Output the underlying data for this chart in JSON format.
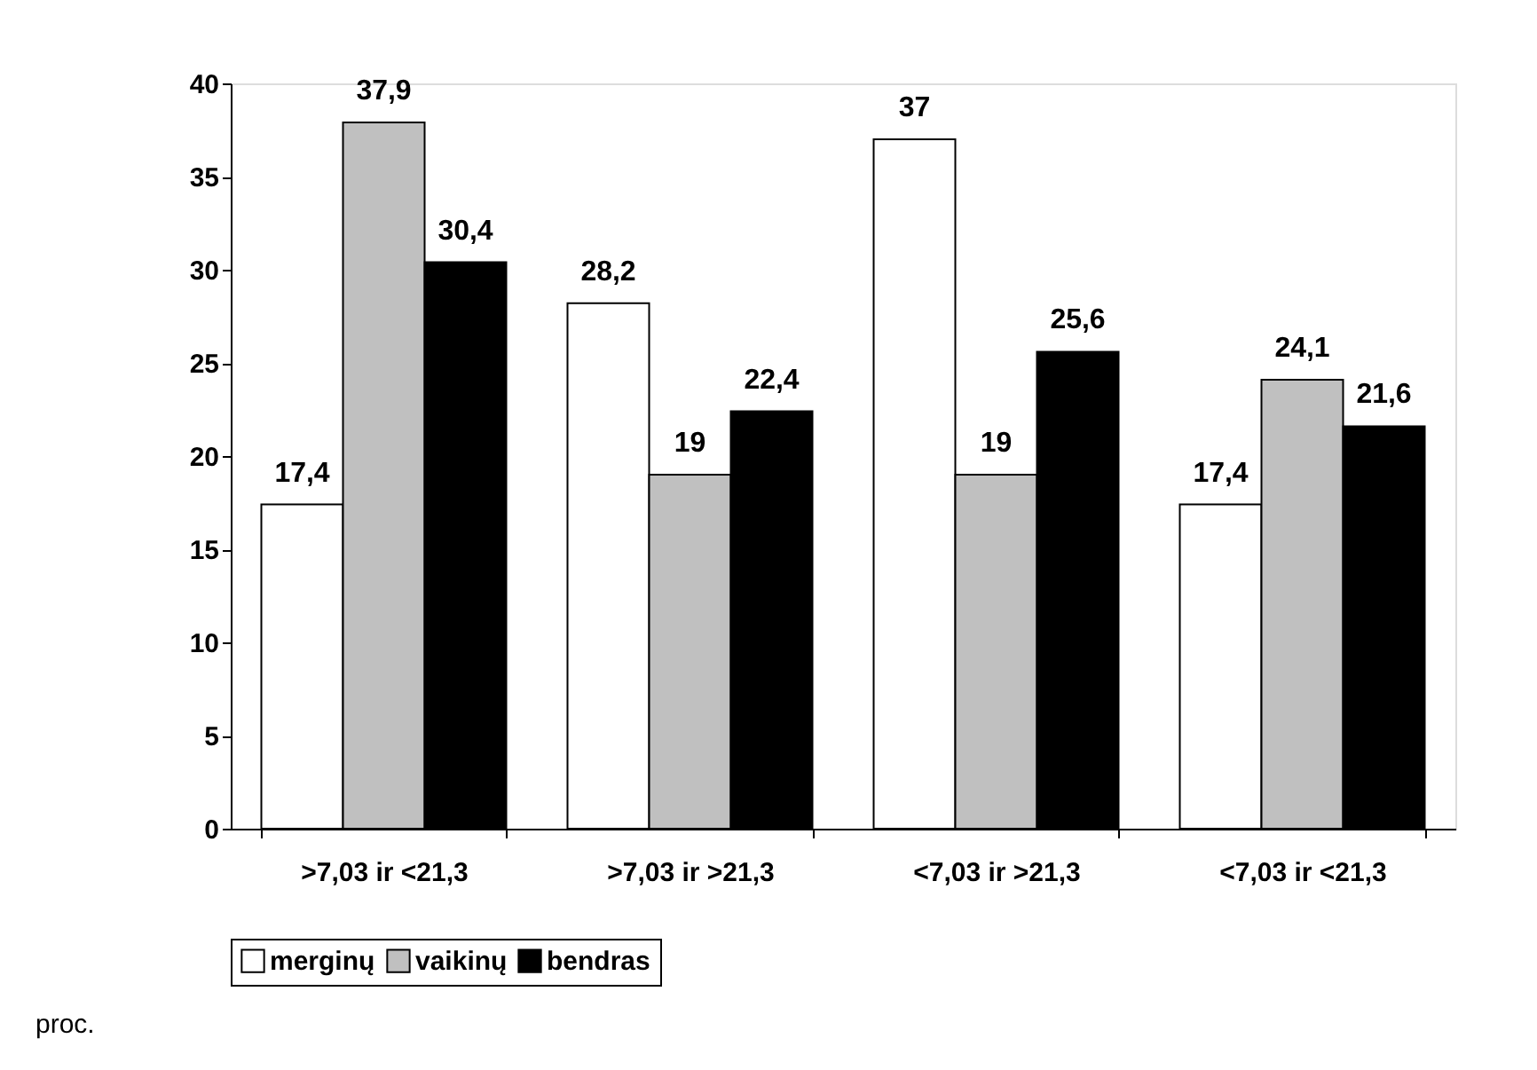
{
  "chart_data": {
    "type": "bar",
    "categories": [
      ">7,03 ir <21,3",
      ">7,03 ir >21,3",
      "<7,03 ir >21,3",
      "<7,03 ir <21,3"
    ],
    "series": [
      {
        "name": "merginų",
        "color": "#ffffff",
        "values": [
          17.4,
          28.2,
          37,
          17.4
        ],
        "value_labels": [
          "17,4",
          "28,2",
          "37",
          "17,4"
        ]
      },
      {
        "name": "vaikinų",
        "color": "#c0c0c0",
        "values": [
          37.9,
          19,
          19,
          24.1
        ],
        "value_labels": [
          "37,9",
          "19",
          "19",
          "24,1"
        ]
      },
      {
        "name": "bendras",
        "color": "#000000",
        "values": [
          30.4,
          22.4,
          25.6,
          21.6
        ],
        "value_labels": [
          "30,4",
          "22,4",
          "25,6",
          "21,6"
        ]
      }
    ],
    "ylim": [
      0,
      40
    ],
    "yticks": [
      0,
      5,
      10,
      15,
      20,
      25,
      30,
      35,
      40
    ],
    "grid": false,
    "legend": "bottom",
    "annotations": [
      "proc."
    ]
  }
}
